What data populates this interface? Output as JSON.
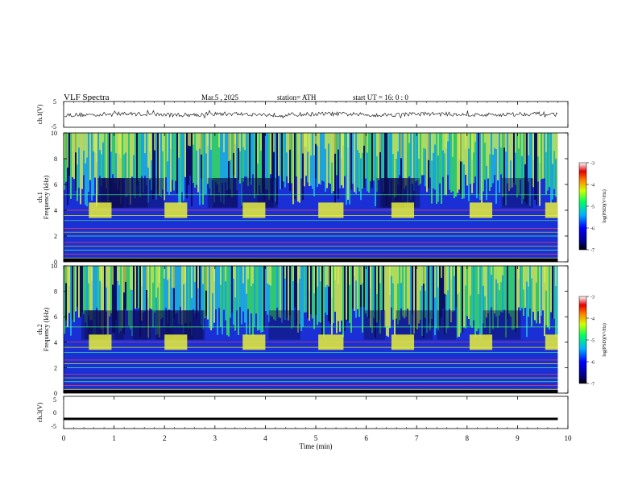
{
  "header": {
    "title": "VLF  Spectra",
    "date": "Mar.5  , 2025",
    "station": "station= ATH",
    "start": "start  UT  =    16: 0   : 0"
  },
  "colors": {
    "spec_bg": "#1a2fd6",
    "spec_dark": "#0a0a50",
    "spec_mid": "#1fb8e0",
    "spec_hot": "#35e060",
    "spec_top": "#d6f04a",
    "band": "#e8f03a",
    "line": "#000000"
  },
  "chart_data": [
    {
      "type": "line",
      "name": "ch1-waveform",
      "ylabel": "ch.1(V)",
      "ylim": [
        -5,
        5
      ],
      "yticks": [
        "5",
        "-5"
      ],
      "xlim": [
        0,
        10
      ],
      "x": [
        0.0,
        0.5,
        1.0,
        1.5,
        2.0,
        2.5,
        3.0,
        3.5,
        4.0,
        4.5,
        5.0,
        5.5,
        6.0,
        6.5,
        7.0,
        7.5,
        8.0,
        8.5,
        9.0,
        9.5,
        9.8
      ],
      "values": [
        0.0,
        0.3,
        -0.2,
        0.4,
        -0.3,
        0.2,
        0.1,
        -0.4,
        0.3,
        0.0,
        -0.2,
        0.3,
        -0.1,
        0.2,
        0.0,
        -0.3,
        0.2,
        0.1,
        -0.2,
        0.3,
        0.0
      ]
    },
    {
      "type": "heatmap",
      "name": "ch1-spectrogram",
      "ylabel": "ch.1\nFrequency (kHz)",
      "ylim": [
        0,
        10
      ],
      "yticks": [
        "0",
        "2",
        "4",
        "6",
        "8",
        "10"
      ],
      "xlim": [
        0,
        10
      ],
      "data_end_min": 9.8,
      "colorbar": {
        "label": "log(PSD)(V²/Hz)",
        "range": [
          -7,
          -3
        ],
        "ticks": [
          "-3",
          "-4",
          "-5",
          "-6",
          "-7"
        ]
      },
      "bursts_min": [
        [
          0.5,
          0.95
        ],
        [
          2.0,
          2.45
        ],
        [
          3.55,
          4.0
        ],
        [
          5.05,
          5.55
        ],
        [
          6.5,
          6.95
        ],
        [
          8.05,
          8.5
        ],
        [
          9.55,
          9.8
        ]
      ],
      "burst_khz": [
        3.4,
        4.6
      ]
    },
    {
      "type": "heatmap",
      "name": "ch2-spectrogram",
      "ylabel": "ch.2\nFrequency (kHz)",
      "ylim": [
        0,
        10
      ],
      "yticks": [
        "0",
        "2",
        "4",
        "6",
        "8",
        "10"
      ],
      "xlim": [
        0,
        10
      ],
      "data_end_min": 9.8,
      "colorbar": {
        "label": "log(PSD)(V²/Hz)",
        "range": [
          -7,
          -3
        ],
        "ticks": [
          "-3",
          "-4",
          "-5",
          "-6",
          "-7"
        ]
      },
      "bursts_min": [
        [
          0.5,
          0.95
        ],
        [
          2.0,
          2.45
        ],
        [
          3.55,
          4.0
        ],
        [
          5.05,
          5.55
        ],
        [
          6.5,
          6.95
        ],
        [
          8.05,
          8.5
        ],
        [
          9.55,
          9.8
        ]
      ],
      "burst_khz": [
        3.4,
        4.6
      ]
    },
    {
      "type": "line",
      "name": "ch3-waveform",
      "ylabel": "ch.3(V)",
      "ylim": [
        -5,
        5
      ],
      "yticks": [
        "5",
        "0",
        "-5"
      ],
      "xlim": [
        0,
        10
      ],
      "x": [
        0.0,
        9.8
      ],
      "values": [
        -2.0,
        -2.0
      ]
    }
  ],
  "xaxis": {
    "label": "Time  (min)",
    "ticks": [
      "0",
      "1",
      "2",
      "3",
      "4",
      "5",
      "6",
      "7",
      "8",
      "9",
      "10"
    ]
  }
}
